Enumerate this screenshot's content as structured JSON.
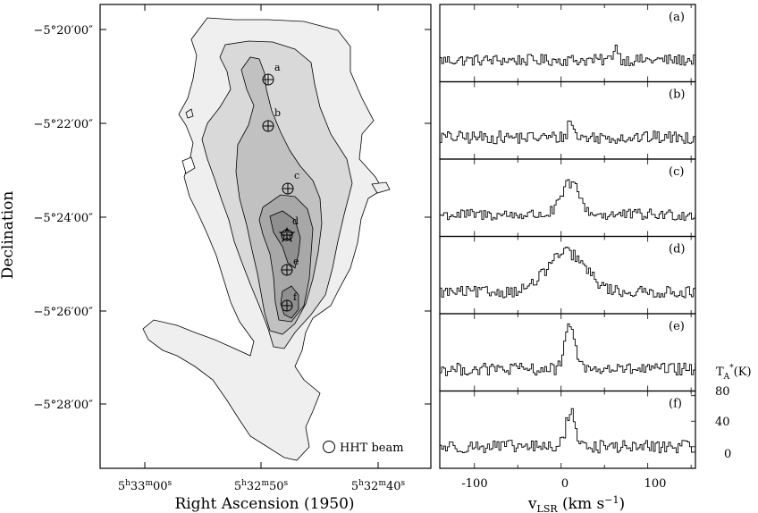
{
  "chart_data": [
    {
      "type": "contour_map",
      "xlabel": "Right Ascension (1950)",
      "ylabel": "Declination",
      "x_ticks": [
        "5h33m00s",
        "5h32m50s",
        "5h32m40s"
      ],
      "y_ticks": [
        "−5°20′00″",
        "−5°22′00″",
        "−5°24′00″",
        "−5°26′00″",
        "−5°28′00″"
      ],
      "legend": {
        "label": "HHT beam",
        "placement": "bottom-right"
      },
      "contour_fills": [
        "#efefef",
        "#d9d9d9",
        "#c1c1c1",
        "#a8a8a8",
        "#8f8f8f"
      ],
      "positions": [
        {
          "label": "a"
        },
        {
          "label": "b"
        },
        {
          "label": "c"
        },
        {
          "label": "d"
        },
        {
          "label": "e"
        },
        {
          "label": "f"
        }
      ]
    },
    {
      "type": "line",
      "xlabel": "v_LSR (km s⁻¹)",
      "xlim": [
        -140,
        155
      ],
      "x_ticks": [
        -100,
        0,
        100
      ],
      "ylabel": "T_A*(K)",
      "ylim": [
        -15,
        85
      ],
      "y_ticks": [
        80,
        40,
        0
      ],
      "series": [
        {
          "name": "(a)",
          "peak_v": 62,
          "peak_T": 22,
          "width": 3,
          "noise": 9
        },
        {
          "name": "(b)",
          "peak_v": 10,
          "peak_T": 28,
          "width": 3,
          "noise": 10
        },
        {
          "name": "(c)",
          "peak_v": 10,
          "peak_T": 50,
          "width": 10,
          "noise": 9
        },
        {
          "name": "(d)",
          "peak_v": 5,
          "peak_T": 62,
          "width": 22,
          "noise": 9
        },
        {
          "name": "(e)",
          "peak_v": 10,
          "peak_T": 68,
          "width": 6,
          "noise": 10
        },
        {
          "name": "(f)",
          "peak_v": 10,
          "peak_T": 58,
          "width": 5,
          "noise": 10
        }
      ]
    }
  ]
}
